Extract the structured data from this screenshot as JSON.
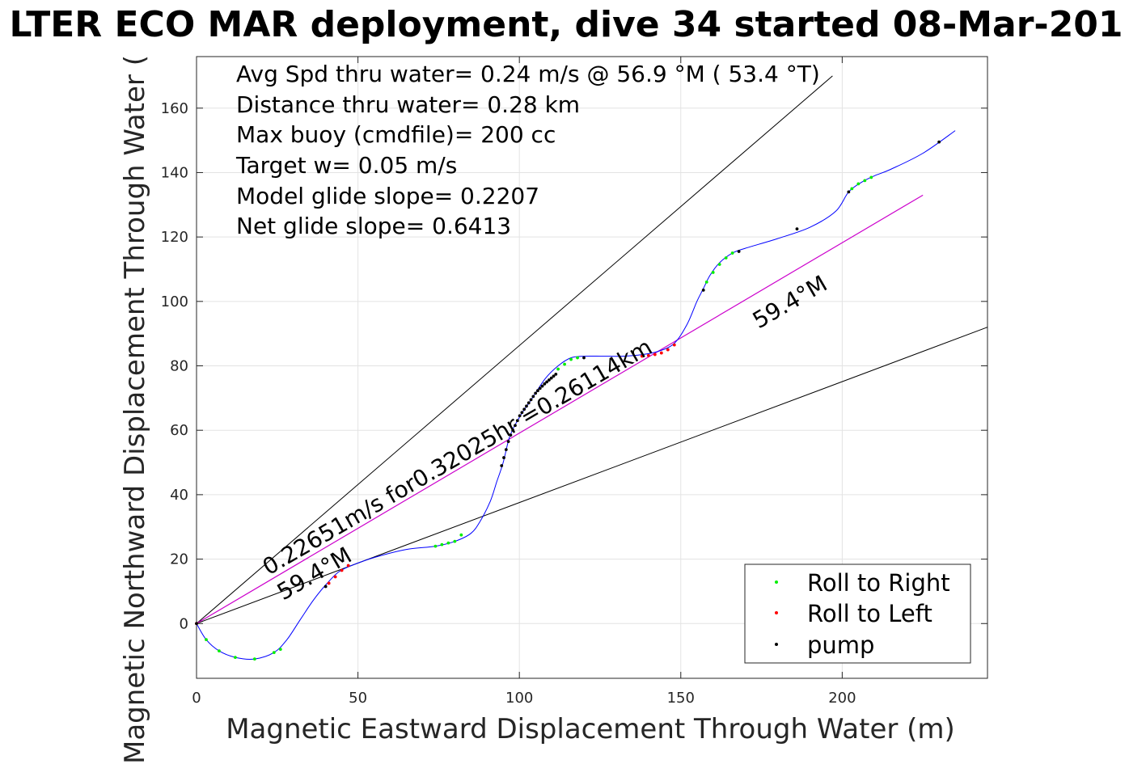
{
  "chart_data": {
    "type": "line",
    "title": "LTER ECO MAR deployment, dive 34 started 08-Mar-201",
    "xlabel": "Magnetic Eastward Displacement Through Water (m)",
    "ylabel": "Magnetic Northward Displacement Through Water (",
    "xlim": [
      0,
      245
    ],
    "ylim": [
      -17,
      176
    ],
    "xticks": [
      0,
      50,
      100,
      150,
      200
    ],
    "yticks": [
      0,
      20,
      40,
      60,
      80,
      100,
      120,
      140,
      160
    ],
    "grid": true,
    "info_lines": [
      "Avg Spd thru water=  0.24 m/s @  56.9 °M ( 53.4 °T)",
      "Distance thru water=  0.28 km",
      "Max buoy (cmdfile)= 200 cc",
      "Target w= 0.05 m/s",
      "Model glide slope= 0.2207",
      "Net glide slope= 0.6413"
    ],
    "annotations": {
      "segment_label": "0.22651m/s for0.32025hr =0.26114km",
      "heading_label_lower": "59.4°M",
      "heading_label_upper": "59.4°M"
    },
    "guide_lines": [
      {
        "x": [
          0,
          197
        ],
        "y": [
          0,
          170
        ],
        "color": "#000000"
      },
      {
        "x": [
          0,
          245
        ],
        "y": [
          0,
          92
        ],
        "color": "#000000"
      }
    ],
    "heading_line": {
      "x": [
        0,
        225
      ],
      "y": [
        0,
        133
      ],
      "color": "#cc00cc"
    },
    "track": {
      "name": "track",
      "color": "#0000ff",
      "x": [
        0,
        3,
        7,
        12,
        18,
        24,
        28,
        32,
        36,
        40,
        44,
        48,
        55,
        65,
        74,
        80,
        85,
        88,
        91,
        93,
        95,
        97,
        100,
        104,
        108,
        112,
        116,
        120,
        126,
        132,
        138,
        143,
        148,
        152,
        155,
        157,
        159,
        162,
        166,
        170,
        180,
        190,
        198,
        202,
        206,
        210,
        215,
        225,
        235
      ],
      "y": [
        0,
        -5,
        -8.5,
        -10.5,
        -11,
        -9,
        -5,
        1,
        7,
        12,
        16,
        18,
        20.5,
        23,
        24,
        25.5,
        28,
        32,
        38,
        44,
        50,
        58,
        64,
        70,
        76,
        80,
        82.5,
        83,
        83,
        83,
        83.5,
        84.5,
        87,
        93,
        100,
        104,
        108,
        112,
        115,
        116.5,
        119.5,
        123,
        128,
        134,
        137,
        139,
        141,
        146,
        153
      ]
    },
    "series": [
      {
        "name": "Roll to Right",
        "color": "#00ee00",
        "x": [
          3,
          7,
          12,
          18,
          24,
          26,
          74,
          76,
          78,
          80,
          82,
          112,
          114,
          116,
          118,
          158,
          160,
          162,
          164,
          166,
          203,
          205,
          207,
          209
        ],
        "y": [
          -5,
          -8.5,
          -10.5,
          -11,
          -9,
          -8,
          24,
          24.5,
          25,
          25.5,
          27.5,
          79,
          80.5,
          82,
          82.5,
          106,
          109,
          111.5,
          113.5,
          115,
          135,
          136.5,
          137.5,
          138.5
        ]
      },
      {
        "name": "Roll to Left",
        "color": "#ff0000",
        "x": [
          0,
          41,
          43,
          45,
          47,
          138,
          140,
          142,
          144,
          146,
          148
        ],
        "y": [
          0,
          12.5,
          14.5,
          16.5,
          18,
          83,
          83.2,
          83.5,
          84,
          85,
          86.5
        ]
      },
      {
        "name": "pump",
        "color": "#000000",
        "x": [
          0,
          40,
          94.5,
          95.2,
          95.9,
          96.6,
          97.3,
          98,
          98.7,
          99.4,
          100.1,
          100.8,
          101.5,
          102.2,
          102.9,
          103.6,
          104.3,
          105,
          105.7,
          106.4,
          107.1,
          107.8,
          108.5,
          109.2,
          109.9,
          110.6,
          111.3,
          120,
          157,
          168,
          186,
          202,
          230
        ],
        "y": [
          0,
          11.5,
          49,
          51.5,
          54,
          56.5,
          58.5,
          60,
          61.5,
          63,
          64.5,
          65.5,
          66.5,
          67.5,
          68.5,
          69.5,
          70.5,
          71.5,
          72.3,
          73,
          73.7,
          74.4,
          75,
          75.6,
          76.2,
          76.8,
          77.4,
          82.5,
          103.5,
          115.5,
          122.5,
          134,
          149.5
        ]
      }
    ]
  }
}
